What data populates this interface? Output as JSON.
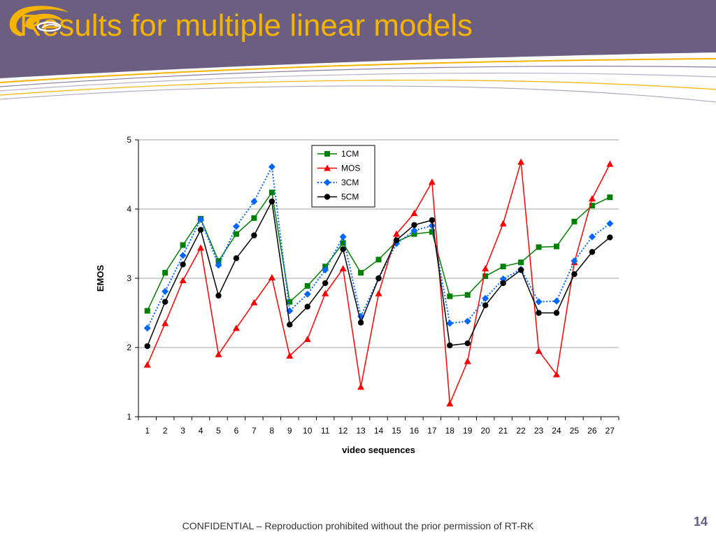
{
  "slide": {
    "title": "Results for multiple linear models",
    "footer": "CONFIDENTIAL – Reproduction prohibited without the prior permission of RT-RK",
    "page_number": "14"
  },
  "colors": {
    "header_bg": "#6B5E80",
    "title": "#F5B400",
    "logo_gold": "#F5B400"
  },
  "chart_data": {
    "type": "line",
    "xlabel": "video sequences",
    "ylabel": "EMOS",
    "ylim": [
      1,
      5
    ],
    "yticks": [
      "1",
      "2",
      "3",
      "4",
      "5"
    ],
    "grid": true,
    "legend_position": "top-center",
    "categories": [
      "1",
      "2",
      "3",
      "4",
      "5",
      "6",
      "7",
      "8",
      "9",
      "10",
      "11",
      "12",
      "13",
      "14",
      "15",
      "16",
      "17",
      "18",
      "19",
      "20",
      "21",
      "22",
      "23",
      "24",
      "25",
      "26",
      "27"
    ],
    "series": [
      {
        "name": "1CM",
        "color": "#008000",
        "marker": "square",
        "dash": "solid",
        "values": [
          2.53,
          3.08,
          3.48,
          3.86,
          3.25,
          3.64,
          3.87,
          4.24,
          2.66,
          2.89,
          3.17,
          3.51,
          3.08,
          3.27,
          3.53,
          3.64,
          3.67,
          2.74,
          2.76,
          3.03,
          3.17,
          3.23,
          3.45,
          3.46,
          3.82,
          4.05,
          4.17
        ]
      },
      {
        "name": "MOS",
        "color": "#FF0000",
        "marker": "triangle",
        "dash": "solid",
        "values": [
          1.75,
          2.35,
          2.97,
          3.44,
          1.9,
          2.28,
          2.65,
          3.01,
          1.88,
          2.12,
          2.78,
          3.14,
          1.43,
          2.78,
          3.64,
          3.94,
          4.39,
          1.19,
          1.8,
          3.14,
          3.79,
          4.68,
          1.95,
          1.61,
          3.23,
          4.15,
          4.65
        ]
      },
      {
        "name": "3CM",
        "color": "#0066FF",
        "marker": "diamond",
        "dash": "dotted",
        "values": [
          2.28,
          2.81,
          3.33,
          3.85,
          3.19,
          3.75,
          4.11,
          4.61,
          2.53,
          2.77,
          3.12,
          3.6,
          2.45,
          3.0,
          3.5,
          3.69,
          3.76,
          2.35,
          2.38,
          2.71,
          2.99,
          3.13,
          2.66,
          2.67,
          3.25,
          3.6,
          3.79
        ]
      },
      {
        "name": "5CM",
        "color": "#000000",
        "marker": "circle",
        "dash": "solid",
        "values": [
          2.02,
          2.66,
          3.2,
          3.7,
          2.75,
          3.29,
          3.62,
          4.11,
          2.33,
          2.59,
          2.93,
          3.42,
          2.36,
          3.0,
          3.55,
          3.77,
          3.84,
          2.03,
          2.06,
          2.61,
          2.93,
          3.12,
          2.5,
          2.5,
          3.06,
          3.38,
          3.59
        ]
      }
    ]
  }
}
